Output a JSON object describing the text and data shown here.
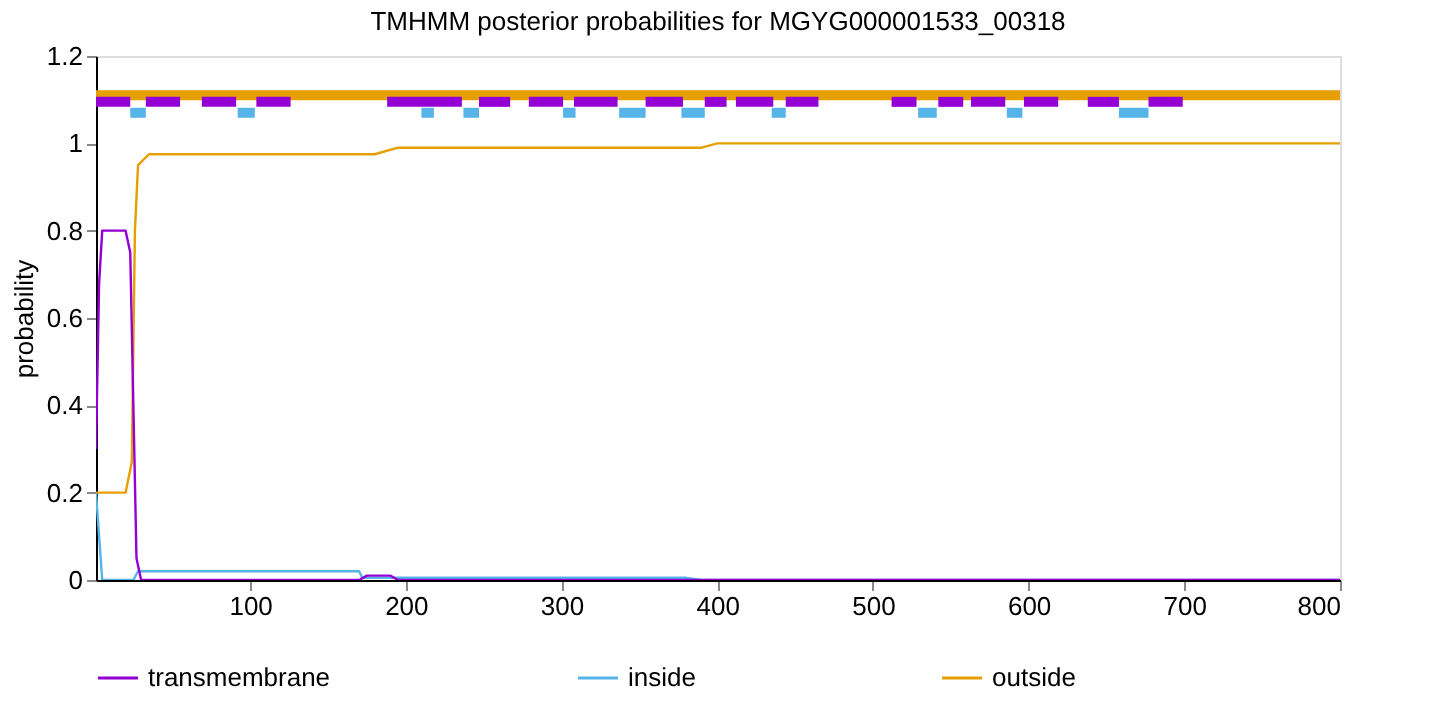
{
  "chart_data": {
    "type": "line",
    "title": "TMHMM posterior probabilities for MGYG000001533_00318",
    "ylabel": "probability",
    "xlim": [
      1,
      800
    ],
    "xticks": [
      100,
      200,
      300,
      400,
      500,
      600,
      700,
      800
    ],
    "ylim": [
      0,
      1.2
    ],
    "yticks": [
      0,
      0.2,
      0.4,
      0.6,
      0.8,
      1,
      1.2
    ],
    "grid": false,
    "legend": "bottom",
    "series": [
      {
        "name": "transmembrane",
        "color": "#9400d3",
        "x": [
          1,
          3,
          5,
          10,
          15,
          20,
          23,
          25,
          27,
          30,
          170,
          175,
          190,
          195,
          800
        ],
        "values": [
          0.3,
          0.68,
          0.8,
          0.8,
          0.8,
          0.8,
          0.75,
          0.4,
          0.05,
          0,
          0,
          0.01,
          0.01,
          0,
          0
        ]
      },
      {
        "name": "inside",
        "color": "#56b4e9",
        "x": [
          1,
          3,
          5,
          25,
          28,
          30,
          170,
          172,
          380,
          390,
          800
        ],
        "values": [
          0.2,
          0.1,
          0,
          0,
          0.02,
          0.02,
          0.02,
          0.005,
          0.005,
          0,
          0
        ]
      },
      {
        "name": "outside",
        "color": "#e69f00",
        "x": [
          1,
          20,
          24,
          26,
          28,
          35,
          180,
          195,
          390,
          400,
          800
        ],
        "values": [
          0.2,
          0.2,
          0.27,
          0.8,
          0.95,
          0.975,
          0.975,
          0.99,
          0.99,
          1,
          1
        ]
      },
      {
        "color": "#e69f00",
        "x": [
          1,
          800
        ],
        "values": [
          1.11,
          1.11
        ]
      },
      {
        "color": "#56b4e9",
        "x": [
          23,
          33
        ],
        "values": [
          1.07,
          1.07
        ]
      },
      {
        "color": "#56b4e9",
        "x": [
          92,
          103
        ],
        "values": [
          1.07,
          1.07
        ]
      },
      {
        "color": "#56b4e9",
        "x": [
          210,
          218
        ],
        "values": [
          1.07,
          1.07
        ]
      },
      {
        "color": "#56b4e9",
        "x": [
          237,
          247
        ],
        "values": [
          1.07,
          1.07
        ]
      },
      {
        "color": "#56b4e9",
        "x": [
          301,
          309
        ],
        "values": [
          1.07,
          1.07
        ]
      },
      {
        "color": "#56b4e9",
        "x": [
          337,
          354
        ],
        "values": [
          1.07,
          1.07
        ]
      },
      {
        "color": "#56b4e9",
        "x": [
          377,
          392
        ],
        "values": [
          1.07,
          1.07
        ]
      },
      {
        "color": "#56b4e9",
        "x": [
          435,
          444
        ],
        "values": [
          1.07,
          1.07
        ]
      },
      {
        "color": "#56b4e9",
        "x": [
          529,
          541
        ],
        "values": [
          1.07,
          1.07
        ]
      },
      {
        "color": "#56b4e9",
        "x": [
          586,
          596
        ],
        "values": [
          1.07,
          1.07
        ]
      },
      {
        "color": "#56b4e9",
        "x": [
          658,
          677
        ],
        "values": [
          1.07,
          1.07
        ]
      },
      {
        "color": "#9400d3",
        "x": [
          1,
          23
        ],
        "values": [
          1.095,
          1.095
        ]
      },
      {
        "color": "#9400d3",
        "x": [
          33,
          55
        ],
        "values": [
          1.095,
          1.095
        ]
      },
      {
        "color": "#9400d3",
        "x": [
          69,
          91
        ],
        "values": [
          1.095,
          1.095
        ]
      },
      {
        "color": "#9400d3",
        "x": [
          104,
          126
        ],
        "values": [
          1.095,
          1.095
        ]
      },
      {
        "color": "#9400d3",
        "x": [
          188,
          236
        ],
        "values": [
          1.095,
          1.095
        ]
      },
      {
        "color": "#9400d3",
        "x": [
          247,
          267
        ],
        "values": [
          1.095,
          1.095
        ]
      },
      {
        "color": "#9400d3",
        "x": [
          279,
          301
        ],
        "values": [
          1.095,
          1.095
        ]
      },
      {
        "color": "#9400d3",
        "x": [
          308,
          336
        ],
        "values": [
          1.095,
          1.095
        ]
      },
      {
        "color": "#9400d3",
        "x": [
          354,
          378
        ],
        "values": [
          1.095,
          1.095
        ]
      },
      {
        "color": "#9400d3",
        "x": [
          392,
          406
        ],
        "values": [
          1.095,
          1.095
        ]
      },
      {
        "color": "#9400d3",
        "x": [
          412,
          436
        ],
        "values": [
          1.095,
          1.095
        ]
      },
      {
        "color": "#9400d3",
        "x": [
          444,
          465
        ],
        "values": [
          1.095,
          1.095
        ]
      },
      {
        "color": "#9400d3",
        "x": [
          512,
          528
        ],
        "values": [
          1.095,
          1.095
        ]
      },
      {
        "color": "#9400d3",
        "x": [
          542,
          558
        ],
        "values": [
          1.095,
          1.095
        ]
      },
      {
        "color": "#9400d3",
        "x": [
          563,
          585
        ],
        "values": [
          1.095,
          1.095
        ]
      },
      {
        "color": "#9400d3",
        "x": [
          597,
          619
        ],
        "values": [
          1.095,
          1.095
        ]
      },
      {
        "color": "#9400d3",
        "x": [
          638,
          658
        ],
        "values": [
          1.095,
          1.095
        ]
      },
      {
        "color": "#9400d3",
        "x": [
          677,
          699
        ],
        "values": [
          1.095,
          1.095
        ]
      }
    ]
  }
}
